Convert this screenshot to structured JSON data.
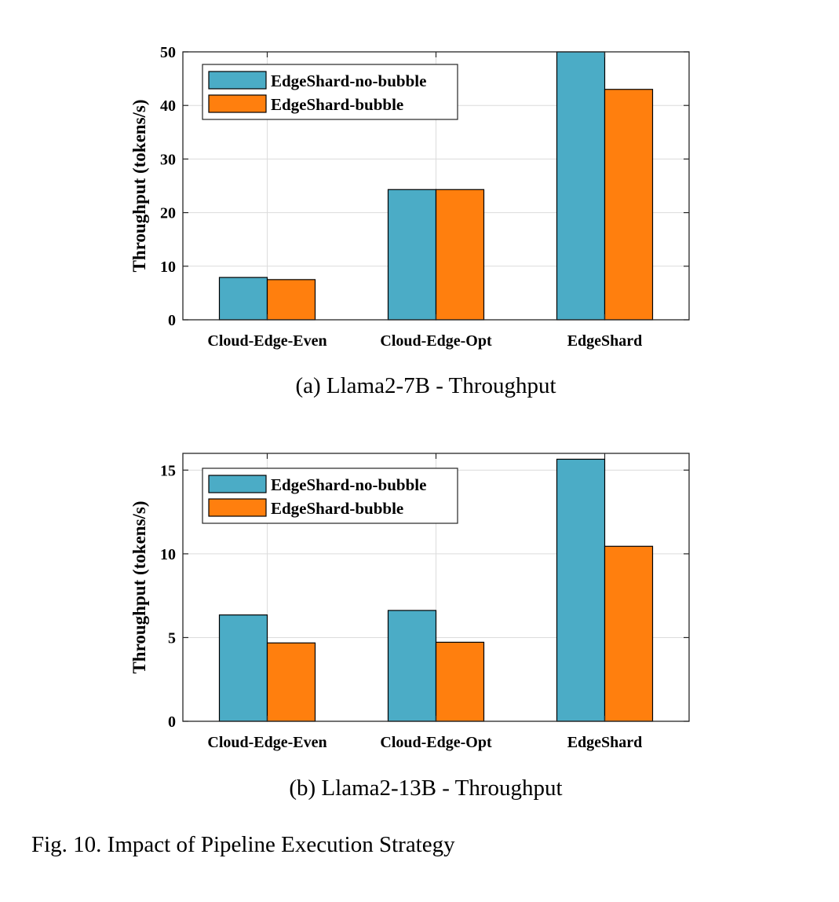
{
  "colors": {
    "series1": "#4bacc6",
    "series2": "#ff7f0e",
    "grid": "#dcdcdc",
    "axis": "#262626"
  },
  "figure_caption": "Fig. 10.  Impact of Pipeline Execution Strategy",
  "chart_data": [
    {
      "type": "bar",
      "caption": "(a) Llama2-7B - Throughput",
      "ylabel": "Throughput (tokens/s)",
      "xlabel": "",
      "categories": [
        "Cloud-Edge-Even",
        "Cloud-Edge-Opt",
        "EdgeShard"
      ],
      "ylim": [
        0,
        50
      ],
      "yticks": [
        0,
        10,
        20,
        30,
        40,
        50
      ],
      "grid": true,
      "legend_position": "top-left",
      "series": [
        {
          "name": "EdgeShard-no-bubble",
          "values": [
            7.9,
            24.3,
            50.0
          ]
        },
        {
          "name": "EdgeShard-bubble",
          "values": [
            7.5,
            24.3,
            43.0
          ]
        }
      ]
    },
    {
      "type": "bar",
      "caption": "(b) Llama2-13B - Throughput",
      "ylabel": "Throughput (tokens/s)",
      "xlabel": "",
      "categories": [
        "Cloud-Edge-Even",
        "Cloud-Edge-Opt",
        "EdgeShard"
      ],
      "ylim": [
        0,
        16
      ],
      "yticks": [
        0,
        5,
        10,
        15
      ],
      "grid": true,
      "legend_position": "top-left",
      "series": [
        {
          "name": "EdgeShard-no-bubble",
          "values": [
            6.35,
            6.62,
            15.65
          ]
        },
        {
          "name": "EdgeShard-bubble",
          "values": [
            4.68,
            4.72,
            10.45
          ]
        }
      ]
    }
  ]
}
